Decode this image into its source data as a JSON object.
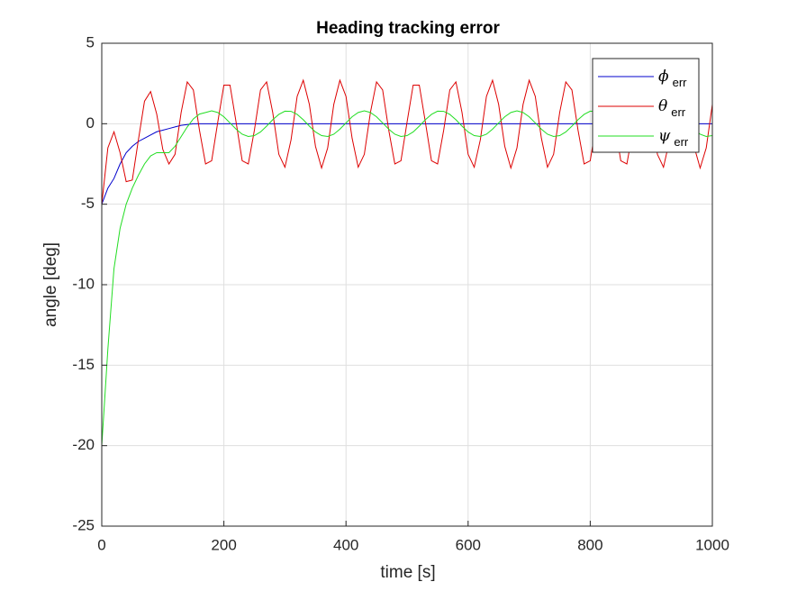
{
  "chart_data": {
    "type": "line",
    "title": "Heading tracking error",
    "x_label": "time [s]",
    "y_label": "angle [deg]",
    "xlim": [
      0,
      1000
    ],
    "ylim": [
      -25,
      5
    ],
    "xticks": [
      0,
      200,
      400,
      600,
      800,
      1000
    ],
    "yticks": [
      -25,
      -20,
      -15,
      -10,
      -5,
      0,
      5
    ],
    "grid": true,
    "legend_position": "top-right",
    "x": [
      0,
      10,
      20,
      30,
      40,
      50,
      60,
      70,
      80,
      90,
      100,
      110,
      120,
      130,
      140,
      150,
      160,
      170,
      180,
      190,
      200,
      210,
      220,
      230,
      240,
      250,
      260,
      270,
      280,
      290,
      300,
      310,
      320,
      330,
      340,
      350,
      360,
      370,
      380,
      390,
      400,
      410,
      420,
      430,
      440,
      450,
      460,
      470,
      480,
      490,
      500,
      510,
      520,
      530,
      540,
      550,
      560,
      570,
      580,
      590,
      600,
      610,
      620,
      630,
      640,
      650,
      660,
      670,
      680,
      690,
      700,
      710,
      720,
      730,
      740,
      750,
      760,
      770,
      780,
      790,
      800,
      810,
      820,
      830,
      840,
      850,
      860,
      870,
      880,
      890,
      900,
      910,
      920,
      930,
      940,
      950,
      960,
      970,
      980,
      990,
      1000
    ],
    "series": [
      {
        "name": "ϕerr",
        "color": "#0000cc",
        "values": [
          -5,
          -4,
          -3.4,
          -2.5,
          -1.8,
          -1.4,
          -1.1,
          -0.9,
          -0.7,
          -0.5,
          -0.4,
          -0.3,
          -0.2,
          -0.1,
          -0.05,
          0,
          0,
          0,
          0,
          0,
          0,
          0,
          0,
          0,
          0,
          0,
          0,
          0,
          0,
          0,
          0,
          0,
          0,
          0,
          0,
          0,
          0,
          0,
          0,
          0,
          0,
          0,
          0,
          0,
          0,
          0,
          0,
          0,
          0,
          0,
          0,
          0,
          0,
          0,
          0,
          0,
          0,
          0,
          0,
          0,
          0,
          0,
          0,
          0,
          0,
          0,
          0,
          0,
          0,
          0,
          0,
          0,
          0,
          0,
          0,
          0,
          0,
          0,
          0,
          0,
          0,
          0,
          0,
          0,
          0,
          0,
          0,
          0,
          0,
          0,
          0,
          0,
          0,
          0,
          0,
          0,
          0,
          0,
          0,
          0,
          0
        ]
      },
      {
        "name": "θerr",
        "color": "#dd0000",
        "values": [
          -5,
          -1.5,
          -0.5,
          -1.8,
          -3.6,
          -3.5,
          -1.0,
          1.4,
          2.0,
          0.6,
          -1.6,
          -2.5,
          -1.9,
          0.7,
          2.6,
          2.1,
          -0.4,
          -2.5,
          -2.3,
          0.1,
          2.4,
          2.4,
          0.1,
          -2.3,
          -2.5,
          -0.4,
          2.1,
          2.6,
          0.7,
          -1.9,
          -2.7,
          -1.0,
          1.7,
          2.7,
          1.2,
          -1.4,
          -2.75,
          -1.5,
          1.2,
          2.7,
          1.7,
          -0.9,
          -2.7,
          -1.9,
          0.7,
          2.6,
          2.1,
          -0.4,
          -2.5,
          -2.3,
          0.1,
          2.4,
          2.4,
          0.1,
          -2.3,
          -2.5,
          -0.4,
          2.1,
          2.6,
          0.7,
          -1.9,
          -2.7,
          -1.0,
          1.7,
          2.7,
          1.2,
          -1.4,
          -2.75,
          -1.5,
          1.2,
          2.7,
          1.7,
          -0.9,
          -2.7,
          -1.9,
          0.7,
          2.6,
          2.1,
          -0.4,
          -2.5,
          -2.3,
          0.1,
          2.4,
          2.4,
          0.1,
          -2.3,
          -2.5,
          -0.4,
          2.1,
          2.6,
          0.7,
          -1.9,
          -2.7,
          -1.0,
          1.7,
          2.7,
          1.2,
          -1.4,
          -2.75,
          -1.5,
          1.2
        ]
      },
      {
        "name": "ψerr",
        "color": "#22dd22",
        "values": [
          -20,
          -14,
          -9,
          -6.5,
          -5,
          -4,
          -3.2,
          -2.5,
          -2,
          -1.8,
          -1.8,
          -1.8,
          -1.4,
          -0.8,
          -0.2,
          0.3,
          0.6,
          0.7,
          0.8,
          0.7,
          0.43,
          0.05,
          -0.34,
          -0.65,
          -0.79,
          -0.74,
          -0.51,
          -0.15,
          0.25,
          0.58,
          0.78,
          0.77,
          0.58,
          0.25,
          -0.15,
          -0.51,
          -0.74,
          -0.79,
          -0.65,
          -0.34,
          0.05,
          0.43,
          0.7,
          0.8,
          0.7,
          0.43,
          0.05,
          -0.34,
          -0.65,
          -0.79,
          -0.74,
          -0.51,
          -0.15,
          0.25,
          0.58,
          0.78,
          0.77,
          0.58,
          0.25,
          -0.15,
          -0.51,
          -0.74,
          -0.79,
          -0.65,
          -0.34,
          0.05,
          0.43,
          0.7,
          0.8,
          0.7,
          0.43,
          0.05,
          -0.34,
          -0.65,
          -0.79,
          -0.74,
          -0.51,
          -0.15,
          0.25,
          0.58,
          0.78,
          0.77,
          0.58,
          0.25,
          -0.15,
          -0.51,
          -0.74,
          -0.79,
          -0.65,
          -0.34,
          0.05,
          0.43,
          0.7,
          0.8,
          0.7,
          0.43,
          0.05,
          -0.34,
          -0.65,
          -0.79,
          -0.74
        ]
      }
    ]
  }
}
